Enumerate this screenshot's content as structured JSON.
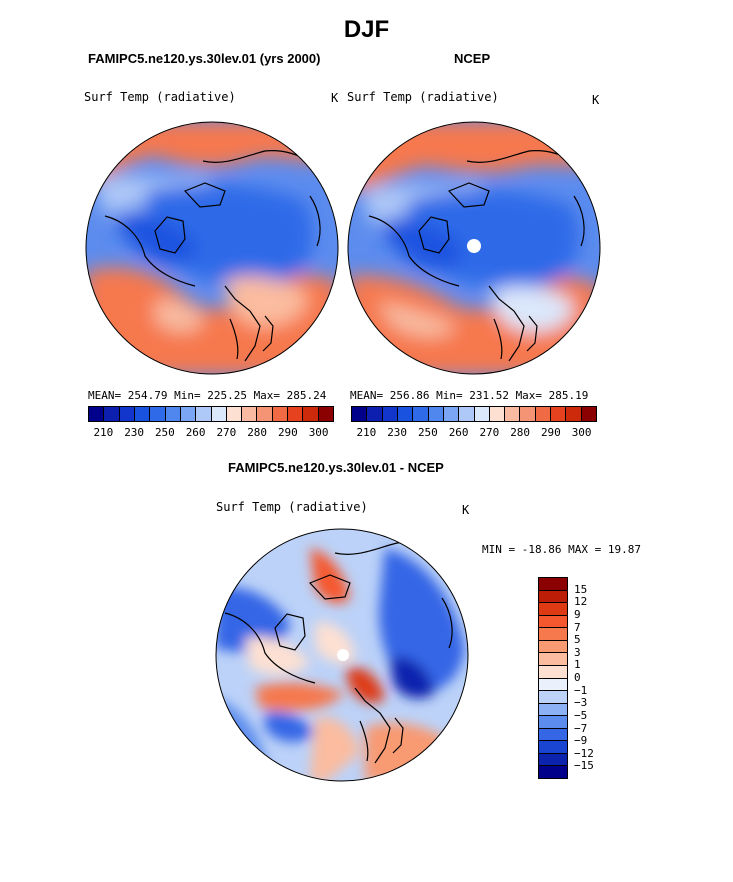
{
  "title": "DJF",
  "colors": {
    "scale_abs": [
      "#00008b",
      "#0c1fae",
      "#1235cb",
      "#1a52e0",
      "#2f6ae8",
      "#4f87ee",
      "#7aa6f3",
      "#aec8f7",
      "#dbe7fb",
      "#fde0d2",
      "#f8bba1",
      "#f59474",
      "#f06a44",
      "#e74220",
      "#cc2a0a",
      "#8b0000"
    ],
    "scale_diff": [
      "#8b0000",
      "#bb1d06",
      "#de3a14",
      "#f5582f",
      "#f6784d",
      "#f89a72",
      "#fbbc9f",
      "#fde0d2",
      "#eaf1fc",
      "#bcd2f8",
      "#8cb1f4",
      "#5c8cee",
      "#3466e6",
      "#1a45d2",
      "#0c24ad",
      "#00008b"
    ]
  },
  "panels": [
    {
      "heading": "FAMIPC5.ne120.ys.30lev.01 (yrs 2000)",
      "variable": "Surf Temp (radiative)",
      "units": "K",
      "stats": "MEAN= 254.79   Min= 225.25   Max= 285.24",
      "colorbar_labels": [
        "210",
        "230",
        "250",
        "260",
        "270",
        "280",
        "290",
        "300"
      ]
    },
    {
      "heading": "NCEP",
      "variable": "Surf Temp (radiative)",
      "units": "K",
      "stats": "MEAN= 256.86   Min= 231.52   Max= 285.19",
      "colorbar_labels": [
        "210",
        "230",
        "250",
        "260",
        "270",
        "280",
        "290",
        "300"
      ]
    },
    {
      "heading": "FAMIPC5.ne120.ys.30lev.01 - NCEP",
      "variable": "Surf Temp (radiative)",
      "units": "K",
      "stats": "MIN = -18.86 MAX =  19.87",
      "colorbar_labels": [
        "15",
        "12",
        "9",
        "7",
        "5",
        "3",
        "1",
        "0",
        "−1",
        "−3",
        "−5",
        "−7",
        "−9",
        "−12",
        "−15"
      ]
    }
  ],
  "chart_data": [
    {
      "type": "heatmap",
      "title": "FAMIPC5.ne120.ys.30lev.01 (yrs 2000)",
      "projection": "north polar stereographic",
      "variable": "Surf Temp (radiative)",
      "units": "K",
      "mean": 254.79,
      "min": 225.25,
      "max": 285.24,
      "contour_levels": [
        210,
        220,
        230,
        240,
        250,
        255,
        260,
        265,
        270,
        275,
        280,
        285,
        290,
        295,
        300
      ],
      "colorbar_labels": [
        210,
        230,
        250,
        260,
        270,
        280,
        290,
        300
      ]
    },
    {
      "type": "heatmap",
      "title": "NCEP",
      "projection": "north polar stereographic",
      "variable": "Surf Temp (radiative)",
      "units": "K",
      "mean": 256.86,
      "min": 231.52,
      "max": 285.19,
      "contour_levels": [
        210,
        220,
        230,
        240,
        250,
        255,
        260,
        265,
        270,
        275,
        280,
        285,
        290,
        295,
        300
      ],
      "colorbar_labels": [
        210,
        230,
        250,
        260,
        270,
        280,
        290,
        300
      ]
    },
    {
      "type": "heatmap",
      "title": "FAMIPC5.ne120.ys.30lev.01 - NCEP",
      "projection": "north polar stereographic",
      "variable": "Surf Temp (radiative)",
      "units": "K",
      "min": -18.86,
      "max": 19.87,
      "contour_levels": [
        15,
        12,
        9,
        7,
        5,
        3,
        1,
        0,
        -1,
        -3,
        -5,
        -7,
        -9,
        -12,
        -15
      ],
      "colorbar_labels": [
        15,
        12,
        9,
        7,
        5,
        3,
        1,
        0,
        -1,
        -3,
        -5,
        -7,
        -9,
        -12,
        -15
      ]
    }
  ]
}
